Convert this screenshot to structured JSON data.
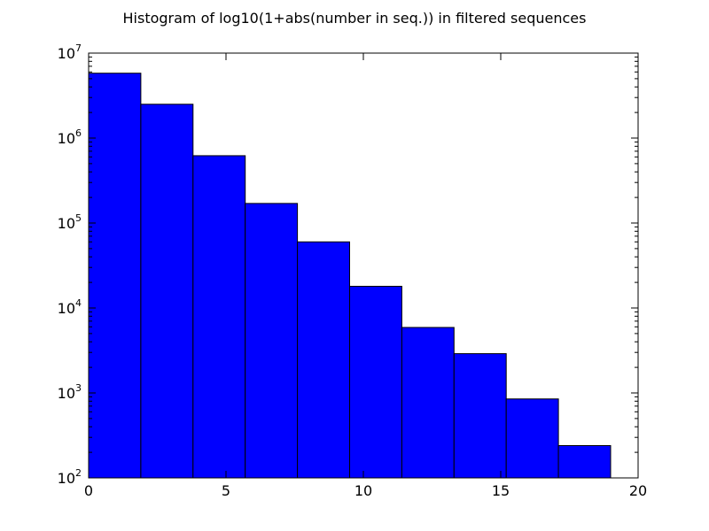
{
  "chart_data": {
    "type": "bar",
    "title": "Histogram of log10(1+abs(number in seq.)) in filtered sequences",
    "xlabel": "",
    "ylabel": "",
    "bins": [
      {
        "x0": 0.0,
        "x1": 1.9,
        "count": 5800000
      },
      {
        "x0": 1.9,
        "x1": 3.8,
        "count": 2500000
      },
      {
        "x0": 3.8,
        "x1": 5.7,
        "count": 620000
      },
      {
        "x0": 5.7,
        "x1": 7.6,
        "count": 170000
      },
      {
        "x0": 7.6,
        "x1": 9.5,
        "count": 60000
      },
      {
        "x0": 9.5,
        "x1": 11.4,
        "count": 18000
      },
      {
        "x0": 11.4,
        "x1": 13.3,
        "count": 5900
      },
      {
        "x0": 13.3,
        "x1": 15.2,
        "count": 2900
      },
      {
        "x0": 15.2,
        "x1": 17.1,
        "count": 850
      },
      {
        "x0": 17.1,
        "x1": 19.0,
        "count": 240
      }
    ],
    "xlim": [
      0,
      20
    ],
    "ylim": [
      100,
      10000000
    ],
    "yscale": "log",
    "x_ticks": [
      {
        "value": 0,
        "label": "0"
      },
      {
        "value": 5,
        "label": "5"
      },
      {
        "value": 10,
        "label": "10"
      },
      {
        "value": 15,
        "label": "15"
      },
      {
        "value": 20,
        "label": "20"
      }
    ],
    "y_ticks": [
      {
        "exponent": 2,
        "base": "10",
        "sup": "2"
      },
      {
        "exponent": 3,
        "base": "10",
        "sup": "3"
      },
      {
        "exponent": 4,
        "base": "10",
        "sup": "4"
      },
      {
        "exponent": 5,
        "base": "10",
        "sup": "5"
      },
      {
        "exponent": 6,
        "base": "10",
        "sup": "6"
      },
      {
        "exponent": 7,
        "base": "10",
        "sup": "7"
      }
    ],
    "grid": false,
    "colors": {
      "bar_fill": "#0000ff",
      "bar_edge": "#000000",
      "axes": "#000000",
      "background": "#ffffff"
    }
  }
}
